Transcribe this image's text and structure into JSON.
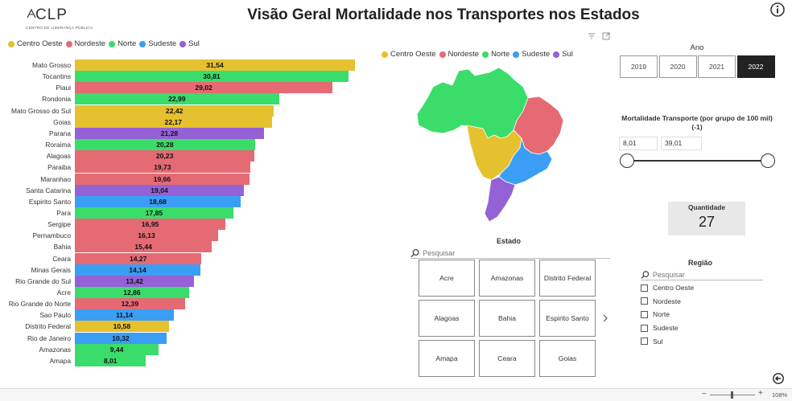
{
  "logo": {
    "text": "CLP",
    "subtitle": "CENTRO DE LIDERANÇA PÚBLICA"
  },
  "title": "Visão Geral Mortalidade nos Transportes nos Estados",
  "colors": {
    "centro_oeste": "#E6C12F",
    "nordeste": "#E56A74",
    "norte": "#3ADD6A",
    "sudeste": "#3A9EF5",
    "sul": "#9561D6"
  },
  "legend": [
    {
      "label": "Centro Oeste",
      "key": "centro_oeste"
    },
    {
      "label": "Nordeste",
      "key": "nordeste"
    },
    {
      "label": "Norte",
      "key": "norte"
    },
    {
      "label": "Sudeste",
      "key": "sudeste"
    },
    {
      "label": "Sul",
      "key": "sul"
    }
  ],
  "chart_data": {
    "type": "bar",
    "orientation": "horizontal",
    "max_value": 31.54,
    "categories": [
      "Mato Grosso",
      "Tocantins",
      "Piaui",
      "Rondonia",
      "Mato Grosso do Sul",
      "Goias",
      "Parana",
      "Roraima",
      "Alagoas",
      "Paraiba",
      "Maranhao",
      "Santa Catarina",
      "Espirito Santo",
      "Para",
      "Sergipe",
      "Pernambuco",
      "Bahia",
      "Ceara",
      "Minas Gerais",
      "Rio Grande do Sul",
      "Acre",
      "Rio Grande do Norte",
      "Sao Paulo",
      "Distrito Federal",
      "Rio de Janeiro",
      "Amazonas",
      "Amapa"
    ],
    "values": [
      31.54,
      30.81,
      29.02,
      22.99,
      22.42,
      22.17,
      21.28,
      20.28,
      20.23,
      19.73,
      19.66,
      19.04,
      18.68,
      17.85,
      16.95,
      16.13,
      15.44,
      14.27,
      14.14,
      13.42,
      12.86,
      12.39,
      11.14,
      10.58,
      10.32,
      9.44,
      8.01
    ],
    "labels": [
      "31,54",
      "30,81",
      "29,02",
      "22,99",
      "22,42",
      "22,17",
      "21,28",
      "20,28",
      "20,23",
      "19,73",
      "19,66",
      "19,04",
      "18,68",
      "17,85",
      "16,95",
      "16,13",
      "15,44",
      "14,27",
      "14,14",
      "13,42",
      "12,86",
      "12,39",
      "11,14",
      "10,58",
      "10,32",
      "9,44",
      "8,01"
    ],
    "regions": [
      "centro_oeste",
      "norte",
      "nordeste",
      "norte",
      "centro_oeste",
      "centro_oeste",
      "sul",
      "norte",
      "nordeste",
      "nordeste",
      "nordeste",
      "sul",
      "sudeste",
      "norte",
      "nordeste",
      "nordeste",
      "nordeste",
      "nordeste",
      "sudeste",
      "sul",
      "norte",
      "nordeste",
      "sudeste",
      "centro_oeste",
      "sudeste",
      "norte",
      "norte"
    ]
  },
  "ano": {
    "title": "Ano",
    "years": [
      "2019",
      "2020",
      "2021",
      "2022"
    ],
    "selected": "2022"
  },
  "mortalidade": {
    "title_line1": "Mortalidade Transporte (por grupo de 100 mil)",
    "title_line2": "(-1)",
    "min": "8,01",
    "max": "39,01"
  },
  "quantidade": {
    "label": "Quantidade",
    "value": "27"
  },
  "estado": {
    "title": "Estado",
    "search_placeholder": "Pesquisar",
    "tiles": [
      "Acre",
      "Amazonas",
      "Distrito Federal",
      "Alagoas",
      "Bahia",
      "Espirito Santo",
      "Amapa",
      "Ceara",
      "Goias"
    ]
  },
  "regiao": {
    "title": "Região",
    "search_placeholder": "Pesquisar",
    "options": [
      "Centro Oeste",
      "Nordeste",
      "Norte",
      "Sudeste",
      "Sul"
    ]
  },
  "status": {
    "zoom": "108%"
  }
}
